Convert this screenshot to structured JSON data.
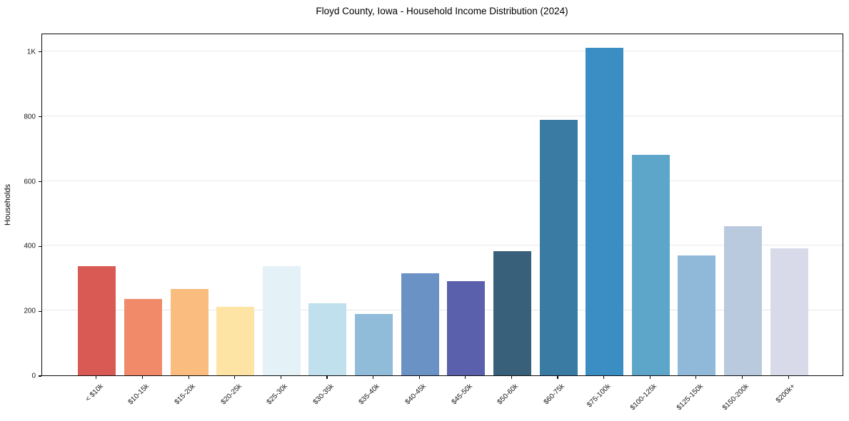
{
  "chart_data": {
    "type": "bar",
    "title": "Floyd County, Iowa - Household Income Distribution (2024)",
    "xlabel": "",
    "ylabel": "Households",
    "categories": [
      "< $10k",
      "$10-15k",
      "$15-20k",
      "$20-25k",
      "$25-30k",
      "$30-35k",
      "$35-40k",
      "$40-45k",
      "$45-50k",
      "$50-60k",
      "$60-75k",
      "$75-100k",
      "$100-125k",
      "$125-150k",
      "$150-200k",
      "$200k+"
    ],
    "values": [
      337,
      236,
      267,
      212,
      338,
      223,
      190,
      315,
      291,
      384,
      789,
      1011,
      681,
      369,
      461,
      392
    ],
    "bar_colors": [
      "#d95a54",
      "#f08a68",
      "#fabd7f",
      "#fde3a4",
      "#e4f1f6",
      "#bfe0ec",
      "#90bcda",
      "#6a92c5",
      "#5a60ac",
      "#38607a",
      "#3a7ba4",
      "#3a8ec4",
      "#5da6ca",
      "#90b8d9",
      "#b9c9de",
      "#d9dae9"
    ],
    "yticks": [
      {
        "value": 0,
        "label": "0"
      },
      {
        "value": 200,
        "label": "200"
      },
      {
        "value": 400,
        "label": "400"
      },
      {
        "value": 600,
        "label": "600"
      },
      {
        "value": 800,
        "label": "800"
      },
      {
        "value": 1000,
        "label": "1K"
      }
    ],
    "ylim": [
      0,
      1057
    ],
    "grid": "horizontal",
    "legend": null,
    "style": {
      "background": "#ffffff",
      "spine_color": "#0a0a0a",
      "gridline_color": "#e7e7e7",
      "tick_text_color": "#1a1a1a"
    }
  }
}
